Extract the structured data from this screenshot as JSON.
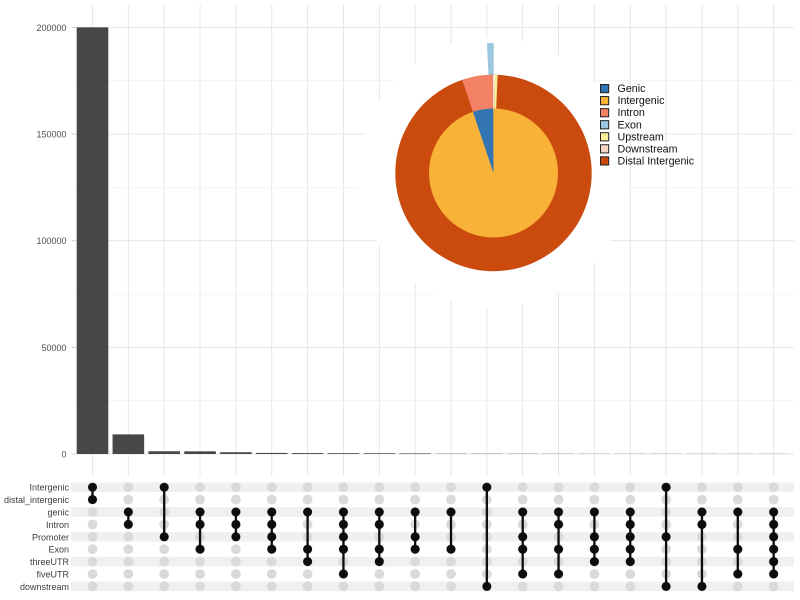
{
  "figure": {
    "description": "UpSet plot of genomic annotation overlaps with inset venn-pie of feature distribution"
  },
  "chart_data": {
    "type": "bar",
    "subtype": "upset",
    "title": "",
    "xlabel": "",
    "ylabel": "",
    "y_ticks": [
      0,
      50000,
      100000,
      150000,
      200000
    ],
    "y_tick_labels": [
      "0",
      "50000",
      "100000",
      "150000",
      "200000"
    ],
    "ylim": [
      0,
      200000
    ],
    "grid": "on",
    "bar_color": "#474747",
    "sets": [
      "Intergenic",
      "distal_intergenic",
      "genic",
      "Intron",
      "Promoter",
      "Exon",
      "threeUTR",
      "fiveUTR",
      "downstream"
    ],
    "intersections": [
      {
        "members": [
          "Intergenic",
          "distal_intergenic"
        ],
        "size": 200000
      },
      {
        "members": [
          "genic",
          "Intron"
        ],
        "size": 9200
      },
      {
        "members": [
          "Intergenic",
          "Promoter"
        ],
        "size": 1280
      },
      {
        "members": [
          "genic",
          "Intron",
          "Exon"
        ],
        "size": 1250
      },
      {
        "members": [
          "genic",
          "Intron",
          "Promoter"
        ],
        "size": 830
      },
      {
        "members": [
          "genic",
          "Intron",
          "Promoter",
          "Exon"
        ],
        "size": 500
      },
      {
        "members": [
          "genic",
          "Exon",
          "threeUTR"
        ],
        "size": 420
      },
      {
        "members": [
          "genic",
          "Intron",
          "Promoter",
          "Exon",
          "fiveUTR"
        ],
        "size": 370
      },
      {
        "members": [
          "genic",
          "Intron",
          "Exon",
          "threeUTR"
        ],
        "size": 330
      },
      {
        "members": [
          "genic",
          "Promoter",
          "Exon"
        ],
        "size": 280
      },
      {
        "members": [
          "genic",
          "Exon"
        ],
        "size": 130
      },
      {
        "members": [
          "Intergenic",
          "downstream"
        ],
        "size": 115
      },
      {
        "members": [
          "genic",
          "Promoter",
          "Exon",
          "fiveUTR"
        ],
        "size": 100
      },
      {
        "members": [
          "genic",
          "Intron",
          "Exon",
          "fiveUTR"
        ],
        "size": 90
      },
      {
        "members": [
          "genic",
          "Promoter",
          "Exon",
          "threeUTR"
        ],
        "size": 80
      },
      {
        "members": [
          "genic",
          "Intron",
          "Promoter",
          "Exon",
          "threeUTR"
        ],
        "size": 75
      },
      {
        "members": [
          "Intergenic",
          "Promoter",
          "downstream"
        ],
        "size": 70
      },
      {
        "members": [
          "genic",
          "Intron",
          "downstream"
        ],
        "size": 65
      },
      {
        "members": [
          "genic",
          "Exon",
          "fiveUTR"
        ],
        "size": 60
      },
      {
        "members": [
          "genic",
          "Intron",
          "Promoter",
          "Exon",
          "threeUTR",
          "fiveUTR"
        ],
        "size": 55
      }
    ],
    "pie": {
      "type": "pie",
      "legend_position": "right",
      "legend": [
        {
          "label": "Genic",
          "color": "#3275B2"
        },
        {
          "label": "Intergenic",
          "color": "#F8B237"
        },
        {
          "label": "Intron",
          "color": "#F28165"
        },
        {
          "label": "Exon",
          "color": "#9BC7E0"
        },
        {
          "label": "Upstream",
          "color": "#FAEC9A"
        },
        {
          "label": "Downstream",
          "color": "#F8D7C9"
        },
        {
          "label": "Distal Intergenic",
          "color": "#CB4B0E"
        }
      ],
      "wedges": [
        {
          "label": "Genic",
          "ring": "inner",
          "start_deg": -18.6,
          "end_deg": -0.2
        },
        {
          "label": "Intergenic",
          "ring": "inner",
          "start_deg": -0.2,
          "end_deg": 341.4
        },
        {
          "label": "Intron",
          "ring": "outer",
          "start_deg": -18.6,
          "end_deg": -0.2
        },
        {
          "label": "Exon",
          "ring": "extended",
          "start_deg": -2.9,
          "end_deg": 0.1
        },
        {
          "label": "Upstream",
          "ring": "outer",
          "start_deg": 0.6,
          "end_deg": 2.4
        },
        {
          "label": "Downstream",
          "ring": "outer",
          "start_deg": -0.2,
          "end_deg": 0.6
        },
        {
          "label": "Distal Intergenic",
          "ring": "outer",
          "start_deg": 2.4,
          "end_deg": 341.4
        }
      ]
    }
  },
  "colors": {
    "bar": "#474747",
    "active_dot": "#0D0D0D",
    "inactive_dot": "#DADADA",
    "band": "#F0F0F0",
    "grid_major": "#E4E4E4",
    "grid_minor": "#F1F1F1",
    "axis_text": "#4D4D4D",
    "set_label_text": "#3C3C3C",
    "legend_text": "#111111",
    "legend_swatch_border": "#222222",
    "downstream_gap": "#FFFFFF"
  }
}
